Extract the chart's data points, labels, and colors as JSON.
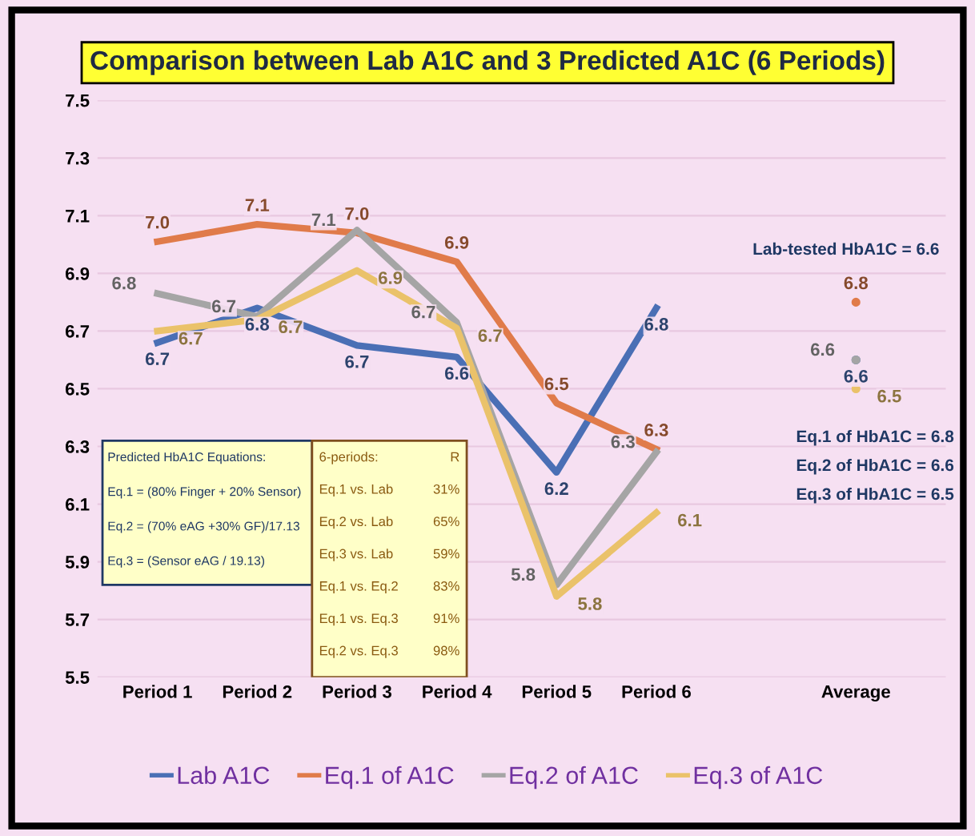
{
  "chart_data": {
    "type": "line",
    "title": "Comparison between Lab A1C and 3 Predicted A1C (6 Periods)",
    "categories": [
      "Period 1",
      "Period 2",
      "Period 3",
      "Period 4",
      "Period 5",
      "Period 6",
      null,
      "Average"
    ],
    "series": [
      {
        "name": "Lab A1C",
        "color": "#4a6fb5",
        "values": [
          6.66,
          6.78,
          6.65,
          6.61,
          6.21,
          6.78,
          null,
          6.6
        ],
        "value_labels": [
          "6.7",
          "6.8",
          "6.7",
          "6.6",
          "6.2",
          "6.8",
          null,
          "6.6"
        ]
      },
      {
        "name": "Eq.1 of A1C",
        "color": "#e07b4a",
        "values": [
          7.01,
          7.07,
          7.04,
          6.94,
          6.45,
          6.29,
          null,
          6.8
        ],
        "value_labels": [
          "7.0",
          "7.1",
          "7.0",
          "6.9",
          "6.5",
          "6.3",
          null,
          "6.8"
        ]
      },
      {
        "name": "Eq.2 of A1C",
        "color": "#a5a5a5",
        "values": [
          6.83,
          6.75,
          7.05,
          6.73,
          5.82,
          6.28,
          null,
          6.6
        ],
        "value_labels": [
          "6.8",
          "6.7",
          "7.1",
          "6.7",
          "5.8",
          "6.3",
          null,
          "6.6"
        ]
      },
      {
        "name": "Eq.3 of A1C",
        "color": "#eac26a",
        "values": [
          6.7,
          6.74,
          6.91,
          6.71,
          5.78,
          6.07,
          null,
          6.5
        ],
        "value_labels": [
          "6.7",
          "6.7",
          "6.9",
          "6.7",
          "5.8",
          "6.1",
          null,
          "6.5"
        ]
      }
    ],
    "ylim": [
      5.5,
      7.5
    ],
    "yticks": [
      5.5,
      5.7,
      5.9,
      6.1,
      6.3,
      6.5,
      6.7,
      6.9,
      7.1,
      7.3,
      7.5
    ],
    "grid": "y",
    "legend": "bottom",
    "marker": "none",
    "line_style": "solid",
    "annotations": [
      "Lab-tested HbA1C = 6.6",
      "Eq.1 of HbA1C = 6.8",
      "Eq.2 of HbA1C = 6.6",
      "Eq.3 of HbA1C = 6.5",
      "Predicted HbA1C Equations:",
      "Eq.1 = (80% Finger + 20% Sensor)",
      "Eq.2 = (70% eAG +30% GF)/17.13",
      "Eq.3 = (Sensor eAG / 19.13)",
      "6-periods:",
      "R",
      "Eq.1 vs. Lab",
      "31%",
      "Eq.2 vs. Lab",
      "65%",
      "Eq.3 vs. Lab",
      "59%",
      "Eq.1 vs. Eq.2",
      "83%",
      "Eq.1 vs. Eq.3",
      "91%",
      "Eq.2 vs. Eq.3",
      "98%"
    ]
  }
}
